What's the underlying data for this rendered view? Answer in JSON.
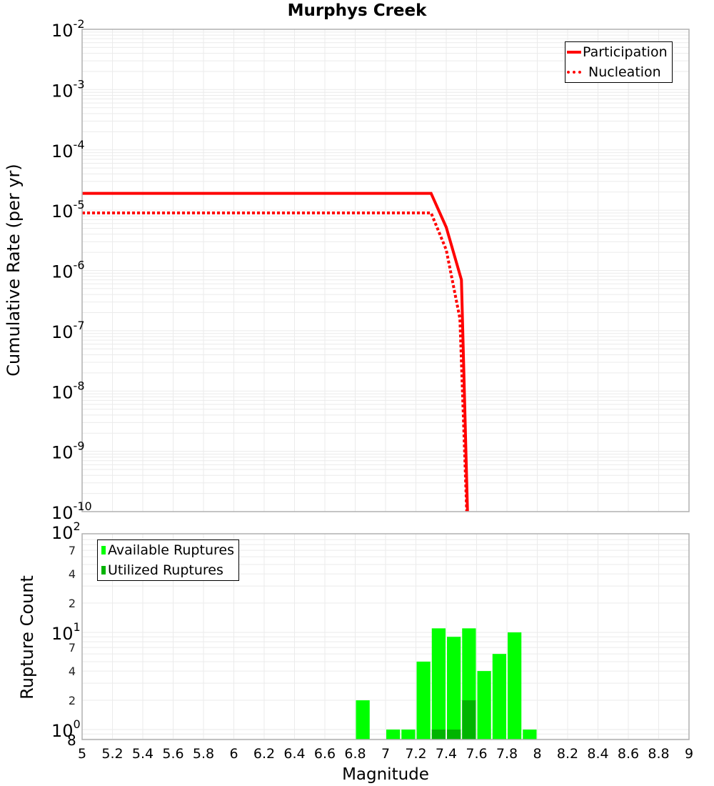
{
  "chart_data": [
    {
      "type": "line",
      "title": "Murphys Creek",
      "xlabel": "Magnitude",
      "ylabel": "Cumulative Rate (per yr)",
      "xlim": [
        5,
        9
      ],
      "ylim": [
        1e-10,
        0.01
      ],
      "yscale": "log",
      "grid": true,
      "legend_position": "top-right",
      "y_tick_labels": [
        "10^-2",
        "10^-3",
        "10^-4",
        "10^-5",
        "10^-6",
        "10^-7",
        "10^-8",
        "10^-9",
        "10^-10"
      ],
      "series": [
        {
          "name": "Participation",
          "style": "solid",
          "color": "#ff0000",
          "x": [
            5.0,
            7.3,
            7.4,
            7.5,
            7.54
          ],
          "y": [
            1.9e-05,
            1.9e-05,
            5.2e-06,
            7e-07,
            1e-10
          ]
        },
        {
          "name": "Nucleation",
          "style": "dotted",
          "color": "#ff0000",
          "x": [
            5.0,
            7.3,
            7.4,
            7.49,
            7.535
          ],
          "y": [
            9e-06,
            9e-06,
            2.2e-06,
            1.6e-07,
            1e-10
          ]
        }
      ]
    },
    {
      "type": "bar",
      "xlabel": "Magnitude",
      "ylabel": "Rupture Count",
      "xlim": [
        5,
        9
      ],
      "ylim": [
        0.8,
        100
      ],
      "yscale": "log",
      "grid": true,
      "legend_position": "top-left",
      "x_tick_labels": [
        "5",
        "5.2",
        "5.4",
        "5.6",
        "5.8",
        "6",
        "6.2",
        "6.4",
        "6.6",
        "6.8",
        "7",
        "7.2",
        "7.4",
        "7.6",
        "7.8",
        "8",
        "8.2",
        "8.4",
        "8.6",
        "8.8",
        "9"
      ],
      "y_tick_labels": [
        "8",
        "10^0",
        "2",
        "4",
        "7",
        "10^1",
        "2",
        "4",
        "7",
        "10^2"
      ],
      "bin_width": 0.1,
      "categories": [
        6.85,
        7.05,
        7.15,
        7.25,
        7.35,
        7.45,
        7.55,
        7.65,
        7.75,
        7.85,
        7.95
      ],
      "series": [
        {
          "name": "Available Ruptures",
          "color": "#00ff00",
          "values": [
            2,
            1,
            1,
            5,
            11,
            9,
            11,
            4,
            6,
            10,
            1
          ]
        },
        {
          "name": "Utilized Ruptures",
          "color": "#00b400",
          "values": [
            0,
            0,
            0,
            0,
            1,
            1,
            2,
            0,
            0,
            0,
            0
          ]
        }
      ]
    }
  ],
  "labels": {
    "title": "Murphys Creek",
    "top_ylabel": "Cumulative Rate (per yr)",
    "bottom_ylabel": "Rupture Count",
    "xlabel": "Magnitude",
    "legend_top": [
      "Participation",
      "Nucleation"
    ],
    "legend_bottom": [
      "Available Ruptures",
      "Utilized Ruptures"
    ]
  },
  "colors": {
    "line": "#ff0000",
    "available": "#00ff00",
    "utilized": "#00b400",
    "grid": "#ebebeb",
    "frame": "#b0b0b0"
  }
}
